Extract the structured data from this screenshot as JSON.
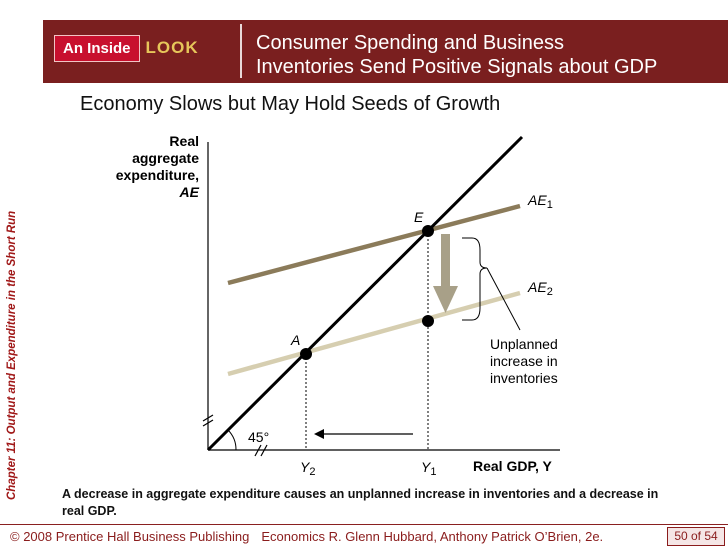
{
  "header": {
    "tag_inside": "An Inside",
    "tag_look": "LOOK",
    "title_line1": "Consumer Spending and Business",
    "title_line2": "Inventories Send Positive Signals about GDP",
    "colors": {
      "bar": "#7a1f1f",
      "tag": "#c8102e",
      "look": "#e6c65a"
    }
  },
  "subtitle": "Economy Slows but May Hold Seeds of Growth",
  "side_label": "Chapter 11:  Output and Expenditure in the Short Run",
  "diagram": {
    "y_axis_label": [
      "Real",
      "aggregate",
      "expenditure,",
      "AE"
    ],
    "x_axis_label": "Real GDP, Y",
    "lines": {
      "ae1": "AE",
      "ae1_sub": "1",
      "ae2": "AE",
      "ae2_sub": "2"
    },
    "points": {
      "e": "E",
      "a": "A"
    },
    "ticks": {
      "y2": "Y",
      "y2_sub": "2",
      "y1": "Y",
      "y1_sub": "1"
    },
    "angle": "45°",
    "annotation": [
      "Unplanned",
      "increase in",
      "inventories"
    ],
    "colors": {
      "ae1": "#8b7b5a",
      "ae2": "#d6ceb0",
      "arrow": "#a8a088",
      "line45": "#000000"
    }
  },
  "caption": "A decrease in aggregate expenditure causes an unplanned increase in inventories and a decrease in real GDP.",
  "footer": {
    "copyright": "© 2008 Prentice Hall Business Publishing",
    "book": "Economics  R. Glenn Hubbard, Anthony Patrick O’Brien, 2e.",
    "page": "50 of 54"
  }
}
